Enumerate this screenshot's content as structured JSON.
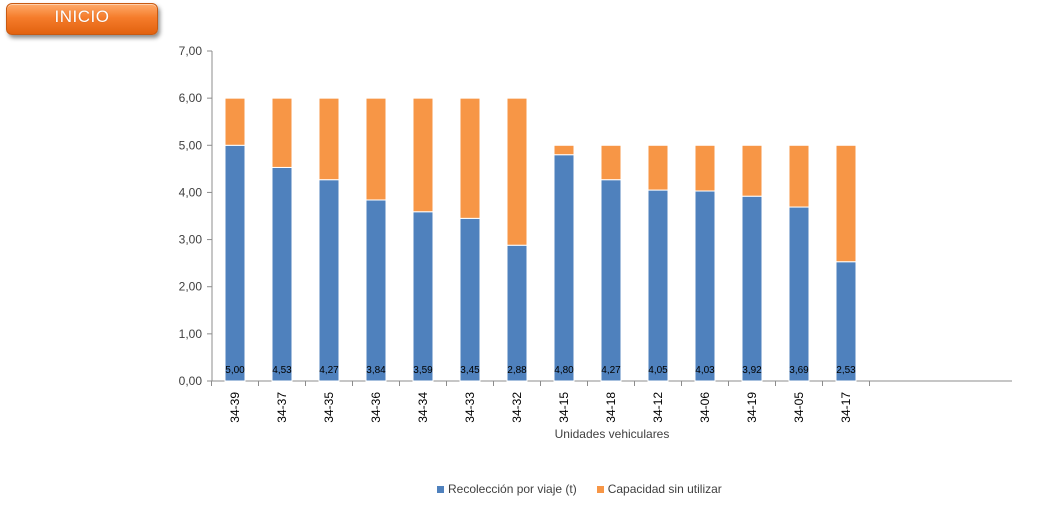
{
  "button": {
    "label": "INICIO"
  },
  "colors": {
    "recoleccion": "#4f81bd",
    "capacidad": "#f79646",
    "button": "#f57c2b"
  },
  "chart_data": {
    "type": "bar",
    "stacked": true,
    "title": "",
    "xlabel": "Unidades vehiculares",
    "ylabel": "",
    "ylim": [
      0,
      7
    ],
    "ytick_labels": [
      "0,00",
      "1,00",
      "2,00",
      "3,00",
      "4,00",
      "5,00",
      "6,00",
      "7,00"
    ],
    "grid": false,
    "legend_position": "bottom",
    "categories": [
      "34-39",
      "34-37",
      "34-35",
      "34-36",
      "34-34",
      "34-33",
      "34-32",
      "34-15",
      "34-18",
      "34-12",
      "34-06",
      "34-19",
      "34-05",
      "34-17"
    ],
    "series": [
      {
        "name": "Recolección por viaje (t)",
        "values": [
          5.0,
          4.53,
          4.27,
          3.84,
          3.59,
          3.45,
          2.88,
          4.8,
          4.27,
          4.05,
          4.03,
          3.92,
          3.69,
          2.53
        ],
        "data_labels": [
          "5,00",
          "4,53",
          "4,27",
          "3,84",
          "3,59",
          "3,45",
          "2,88",
          "4,80",
          "4,27",
          "4,05",
          "4,03",
          "3,92",
          "3,69",
          "2,53"
        ]
      },
      {
        "name": "Capacidad sin utilizar",
        "values": [
          1.0,
          1.47,
          1.73,
          2.16,
          2.41,
          2.55,
          3.12,
          0.2,
          0.73,
          0.95,
          0.97,
          1.08,
          1.31,
          2.47
        ]
      }
    ]
  }
}
